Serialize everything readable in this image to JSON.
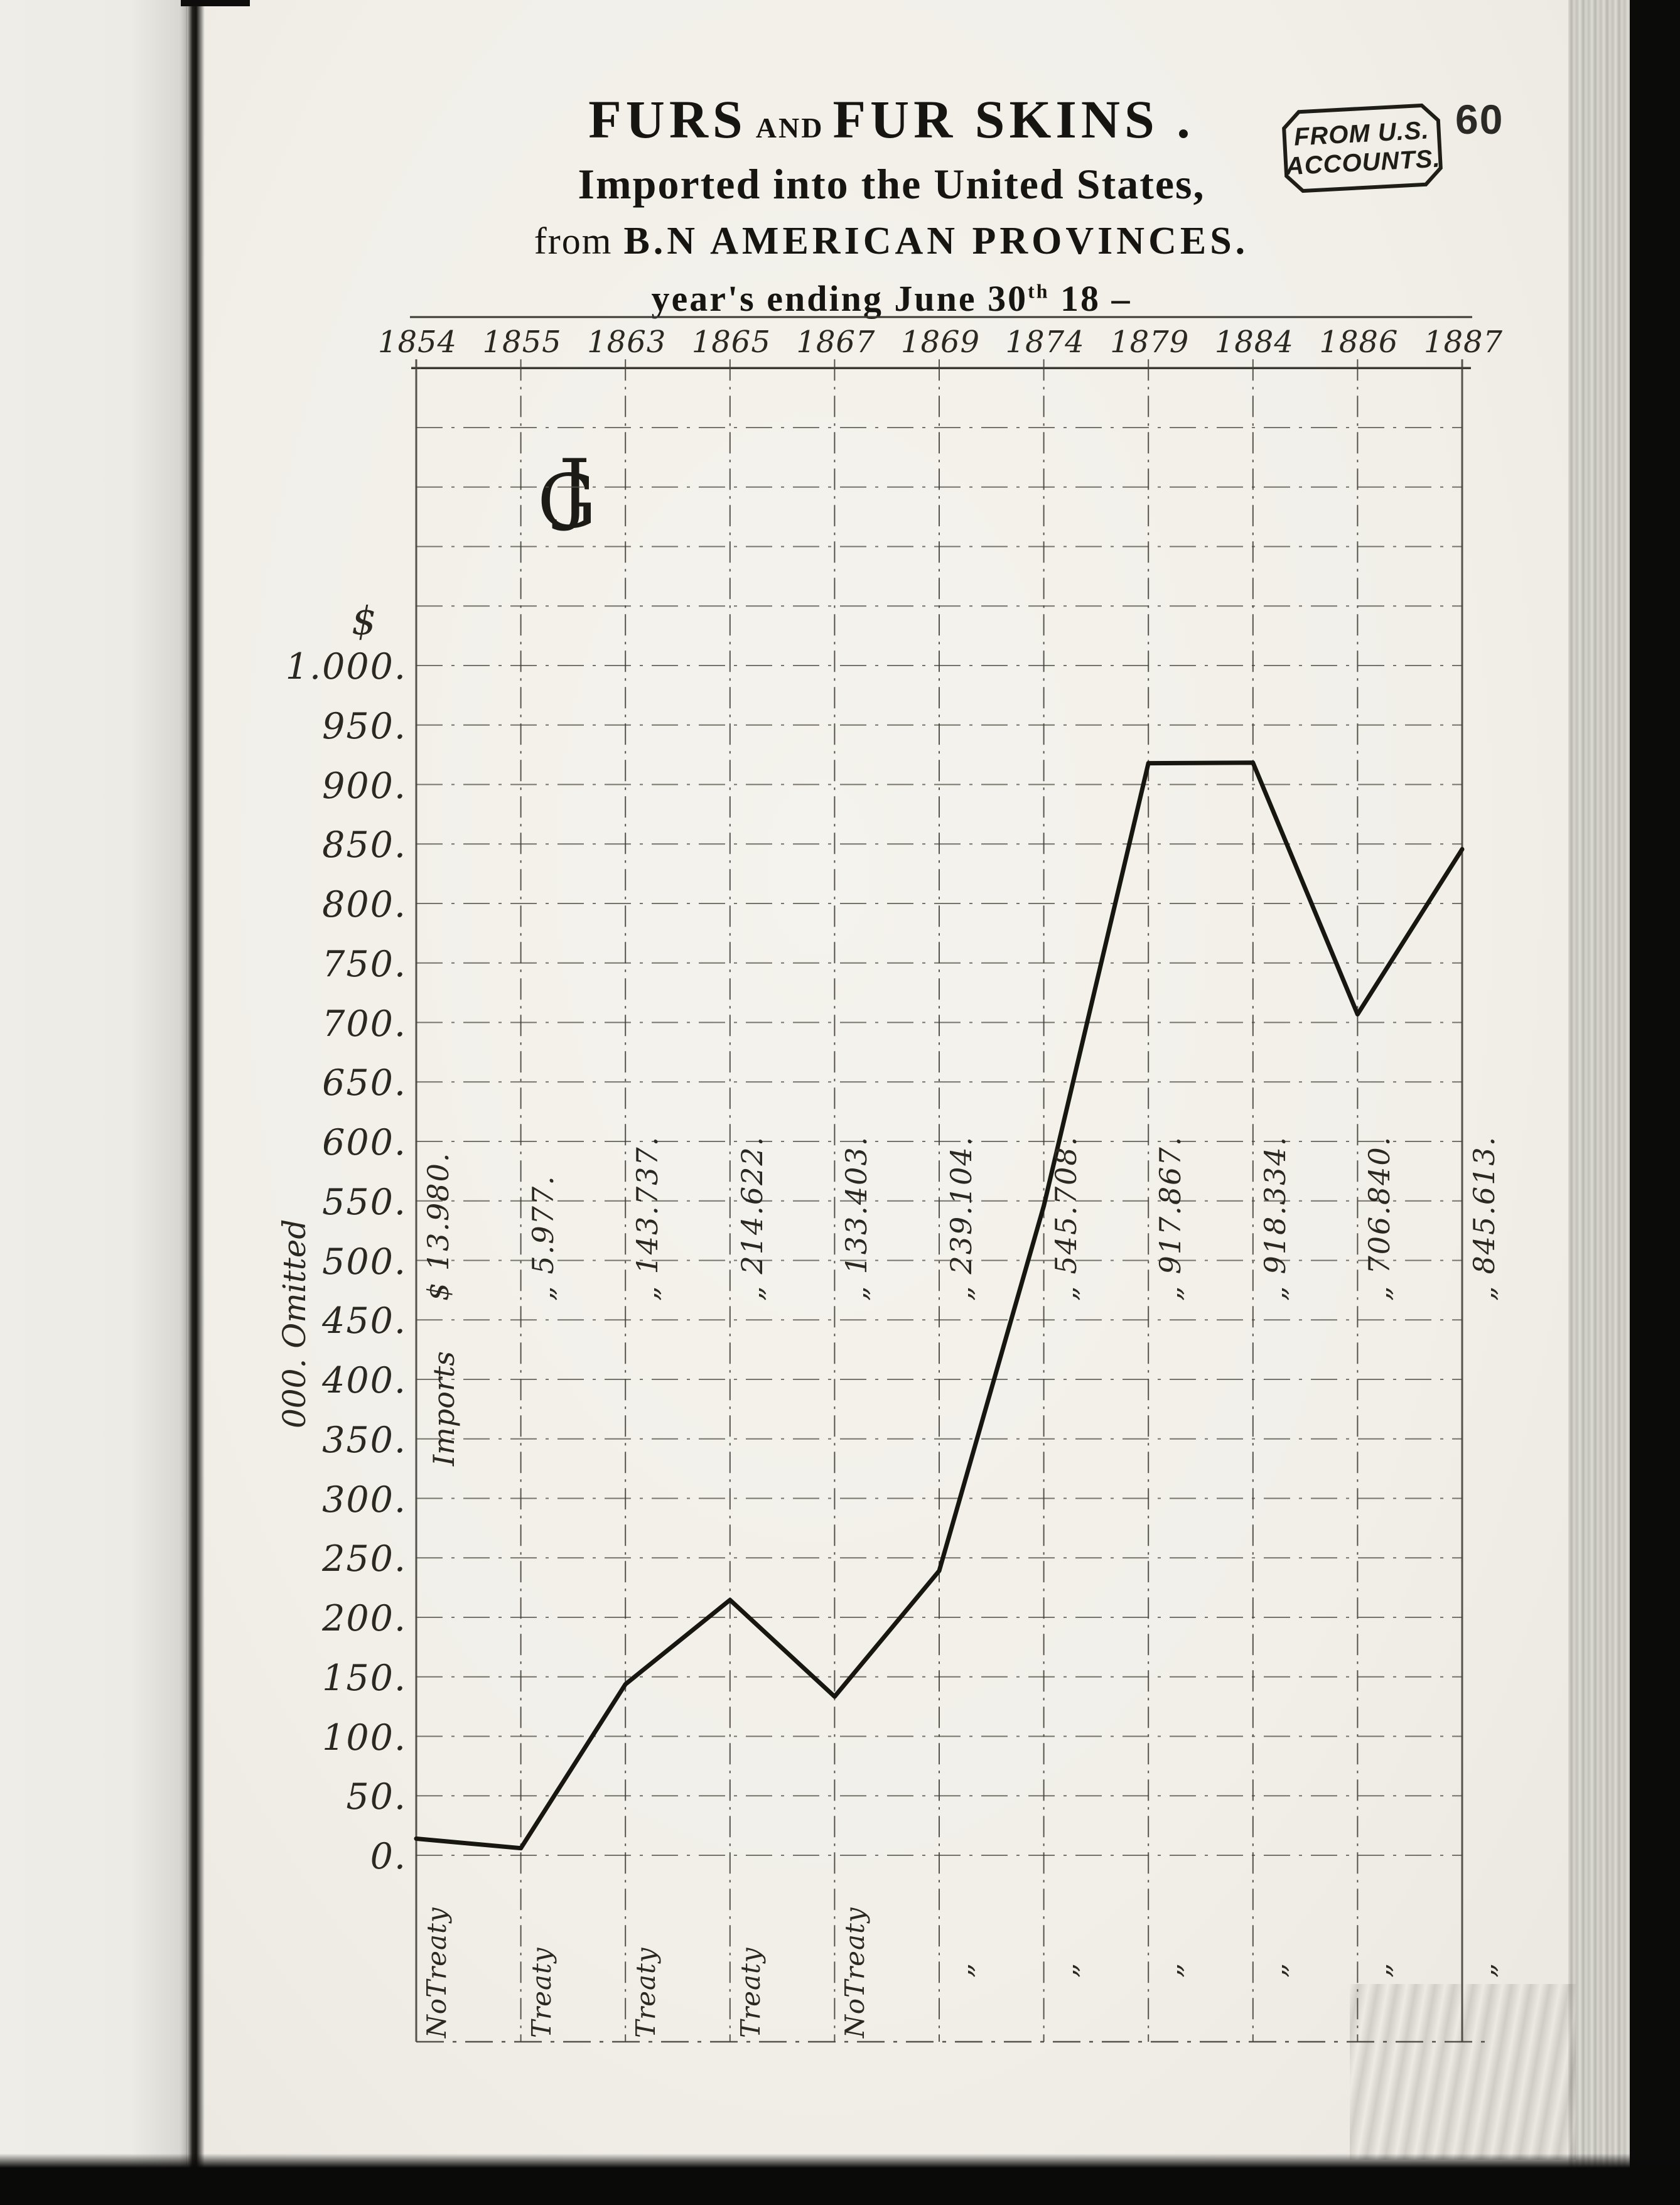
{
  "page": {
    "number": "60"
  },
  "stamp": {
    "line1": "FROM U.S.",
    "line2": "ACCOUNTS."
  },
  "title": {
    "word1": "FURS",
    "and": "AND",
    "word2": "FUR SKINS .",
    "line2": "Imported into the United States,",
    "line3_from": "from",
    "line3_main": "B.N AMERICAN PROVINCES.",
    "line4_main": "year's ending June 30",
    "line4_sup": "th",
    "line4_tail": " 18 –"
  },
  "monogram": {
    "letter_g": "G",
    "letter_j": "J"
  },
  "axis": {
    "dollar": "$",
    "units_note": "000. Omitted",
    "imports_label": "Imports",
    "y_ticks": [
      "1.000.",
      "950.",
      "900.",
      "850.",
      "800.",
      "750.",
      "700.",
      "650.",
      "600.",
      "550.",
      "500.",
      "450.",
      "400.",
      "350.",
      "300.",
      "250.",
      "200.",
      "150.",
      "100.",
      "50.",
      "0."
    ]
  },
  "chart_data": {
    "type": "line",
    "title": "Furs and Fur Skins imported into the United States from B.N American Provinces, years ending June 30th 18–",
    "unit": "dollars, 000 omitted",
    "categories": [
      "1854",
      "1855",
      "1863",
      "1865",
      "1867",
      "1869",
      "1874",
      "1879",
      "1884",
      "1886",
      "1887"
    ],
    "values": [
      13.98,
      5.977,
      143.737,
      214.622,
      133.403,
      239.104,
      545.708,
      917.867,
      918.334,
      706.84,
      845.613
    ],
    "value_labels": [
      "$ 13.980.",
      "„ 5.977.",
      "„ 143.737.",
      "„ 214.622.",
      "„ 133.403.",
      "„ 239.104.",
      "„ 545.708.",
      "„ 917.867.",
      "„ 918.334.",
      "„ 706.840.",
      "„ 845.613."
    ],
    "treaty_labels": [
      "NoTreaty",
      "Treaty",
      "Treaty",
      "Treaty",
      "NoTreaty",
      "„",
      "„",
      "„",
      "„",
      "„",
      "„"
    ],
    "ylabel": "$ 000. Omitted",
    "ylim": [
      0,
      1000
    ],
    "ytick_step": 50,
    "grid": true,
    "legend": false,
    "source_note": "FROM U.S. ACCOUNTS."
  }
}
